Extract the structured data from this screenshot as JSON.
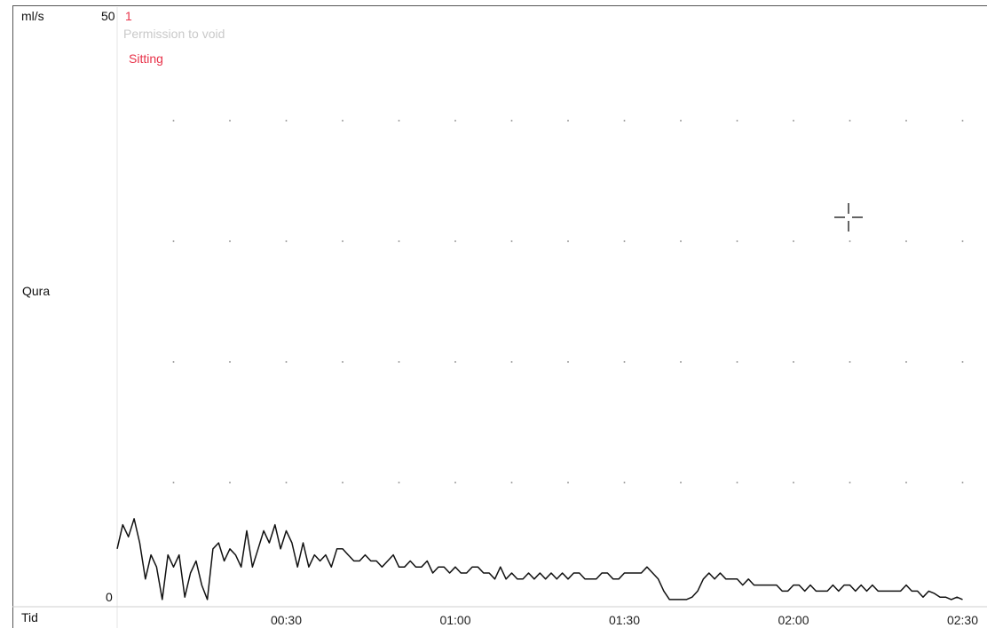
{
  "chart_data": {
    "type": "line",
    "y_unit_label": "ml/s",
    "y_max_label": "50",
    "y_min_label": "0",
    "ylim": [
      0,
      50
    ],
    "xlim": [
      0,
      150
    ],
    "series_label": "Qura",
    "x_axis_label": "Tid",
    "x_tick_labels": [
      "00:30",
      "01:00",
      "01:30",
      "02:00",
      "02:30"
    ],
    "x_tick_values": [
      30,
      60,
      90,
      120,
      150
    ],
    "grid": "dotted",
    "marker": {
      "number": "1",
      "event_label": "Permission to void",
      "position_label": "Sitting",
      "color": "#e8334a"
    },
    "series": [
      {
        "x": [
          0,
          1,
          2,
          3,
          4,
          5,
          6,
          7,
          8,
          9,
          10,
          11,
          12,
          13,
          14,
          15,
          16,
          17,
          18,
          19,
          20,
          21,
          22,
          23,
          24,
          25,
          26,
          27,
          28,
          29,
          30,
          31,
          32,
          33,
          34,
          35,
          36,
          37,
          38,
          39,
          40,
          41,
          42,
          43,
          44,
          45,
          46,
          47,
          48,
          49,
          50,
          51,
          52,
          53,
          54,
          55,
          56,
          57,
          58,
          59,
          60,
          61,
          62,
          63,
          64,
          65,
          66,
          67,
          68,
          69,
          70,
          71,
          72,
          73,
          74,
          75,
          76,
          77,
          78,
          79,
          80,
          81,
          82,
          83,
          84,
          85,
          86,
          87,
          88,
          89,
          90,
          91,
          92,
          93,
          94,
          95,
          96,
          97,
          98,
          99,
          100,
          101,
          102,
          103,
          104,
          105,
          106,
          107,
          108,
          109,
          110,
          111,
          112,
          113,
          114,
          115,
          116,
          117,
          118,
          119,
          120,
          121,
          122,
          123,
          124,
          125,
          126,
          127,
          128,
          129,
          130,
          131,
          132,
          133,
          134,
          135,
          136,
          137,
          138,
          139,
          140,
          141,
          142,
          143,
          144,
          145,
          146,
          147,
          148,
          149,
          150
        ],
        "values": [
          4.5,
          6.5,
          5.5,
          7.0,
          5.0,
          2.0,
          4.0,
          3.0,
          0.3,
          4.0,
          3.0,
          4.0,
          0.5,
          2.5,
          3.5,
          1.5,
          0.3,
          4.5,
          5.0,
          3.5,
          4.5,
          4.0,
          3.0,
          6.0,
          3.0,
          4.5,
          6.0,
          5.0,
          6.5,
          4.5,
          6.0,
          5.0,
          3.0,
          5.0,
          3.0,
          4.0,
          3.5,
          4.0,
          3.0,
          4.5,
          4.5,
          4.0,
          3.5,
          3.5,
          4.0,
          3.5,
          3.5,
          3.0,
          3.5,
          4.0,
          3.0,
          3.0,
          3.5,
          3.0,
          3.0,
          3.5,
          2.5,
          3.0,
          3.0,
          2.5,
          3.0,
          2.5,
          2.5,
          3.0,
          3.0,
          2.5,
          2.5,
          2.0,
          3.0,
          2.0,
          2.5,
          2.0,
          2.0,
          2.5,
          2.0,
          2.5,
          2.0,
          2.5,
          2.0,
          2.5,
          2.0,
          2.5,
          2.5,
          2.0,
          2.0,
          2.0,
          2.5,
          2.5,
          2.0,
          2.0,
          2.5,
          2.5,
          2.5,
          2.5,
          3.0,
          2.5,
          2.0,
          1.0,
          0.3,
          0.3,
          0.3,
          0.3,
          0.5,
          1.0,
          2.0,
          2.5,
          2.0,
          2.5,
          2.0,
          2.0,
          2.0,
          1.5,
          2.0,
          1.5,
          1.5,
          1.5,
          1.5,
          1.5,
          1.0,
          1.0,
          1.5,
          1.5,
          1.0,
          1.5,
          1.0,
          1.0,
          1.0,
          1.5,
          1.0,
          1.5,
          1.5,
          1.0,
          1.5,
          1.0,
          1.5,
          1.0,
          1.0,
          1.0,
          1.0,
          1.0,
          1.5,
          1.0,
          1.0,
          0.5,
          1.0,
          0.8,
          0.5,
          0.5,
          0.3,
          0.5,
          0.3
        ]
      }
    ]
  }
}
